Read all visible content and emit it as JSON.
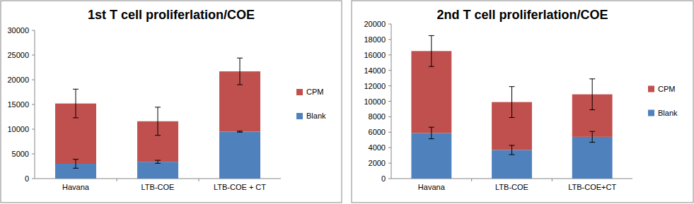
{
  "chart_data": [
    {
      "type": "bar",
      "title": "1st T cell proliferlation/COE",
      "stacked": true,
      "legend": "right",
      "grid": false,
      "categories": [
        "Havana",
        "LTB-COE",
        "LTB-COE + CT"
      ],
      "series": [
        {
          "name": "Blank",
          "color": "#4f81bd",
          "values": [
            3000,
            3400,
            9500
          ],
          "errors": [
            900,
            300,
            100
          ]
        },
        {
          "name": "CPM",
          "color": "#c0504d",
          "values": [
            12200,
            8200,
            12200
          ],
          "errors": [
            2900,
            2850,
            2700
          ]
        }
      ],
      "ylim": [
        0,
        30000
      ],
      "yticks": [
        0,
        5000,
        10000,
        15000,
        20000,
        25000,
        30000
      ]
    },
    {
      "type": "bar",
      "title": "2nd T cell proliferlation/COE",
      "stacked": true,
      "legend": "right",
      "grid": false,
      "categories": [
        "Havana",
        "LTB-COE",
        "LTB-COE+CT"
      ],
      "series": [
        {
          "name": "Blank",
          "color": "#4f81bd",
          "values": [
            5900,
            3700,
            5400
          ],
          "errors": [
            750,
            600,
            700
          ]
        },
        {
          "name": "CPM",
          "color": "#c0504d",
          "values": [
            10600,
            6200,
            5500
          ],
          "errors": [
            2000,
            2000,
            2000
          ]
        }
      ],
      "ylim": [
        0,
        20000
      ],
      "yticks": [
        0,
        2000,
        4000,
        6000,
        8000,
        10000,
        12000,
        14000,
        16000,
        18000,
        20000
      ]
    }
  ]
}
